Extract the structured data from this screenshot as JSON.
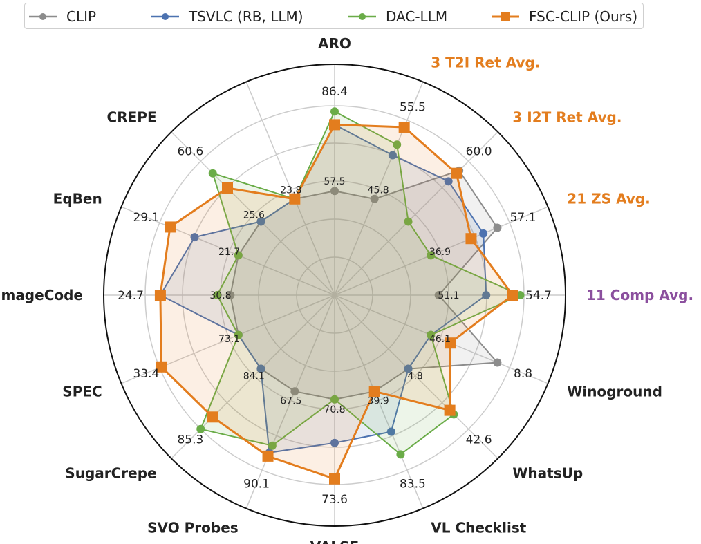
{
  "legend": {
    "items": [
      {
        "name": "CLIP",
        "color": "#8c8c8c",
        "marker": "circle"
      },
      {
        "name": "TSVLC (RB, LLM)",
        "color": "#4c72b0",
        "marker": "circle"
      },
      {
        "name": "DAC-LLM",
        "color": "#6aac48",
        "marker": "circle"
      },
      {
        "name": "FSC-CLIP (Ours)",
        "color": "#e37d1e",
        "marker": "square"
      }
    ]
  },
  "chart_data": {
    "type": "radar",
    "axes": [
      {
        "label": "ARO",
        "color": "#222222",
        "inner_label": "57.5",
        "outer_label": "86.4"
      },
      {
        "label": "3 T2I Ret Avg.",
        "color": "#e37d1e",
        "inner_label": "45.8",
        "outer_label": "55.5"
      },
      {
        "label": "3 I2T Ret Avg.",
        "color": "#e37d1e",
        "inner_label": "",
        "outer_label": "60.0"
      },
      {
        "label": "21 ZS Avg.",
        "color": "#e37d1e",
        "inner_label": "36.9",
        "outer_label": "57.1"
      },
      {
        "label": "11 Comp Avg.",
        "color": "#8b4f9e",
        "inner_label": "51.1",
        "outer_label": "54.7"
      },
      {
        "label": "Winoground",
        "color": "#222222",
        "inner_label": "46.1",
        "outer_label": "8.8"
      },
      {
        "label": "WhatsUp",
        "color": "#222222",
        "inner_label": "4.8",
        "outer_label": "42.6"
      },
      {
        "label": "VL Checklist",
        "color": "#222222",
        "inner_label": "39.9",
        "outer_label": "83.5"
      },
      {
        "label": "VALSE",
        "color": "#222222",
        "inner_label": "70.8",
        "outer_label": "73.6"
      },
      {
        "label": "SVO Probes",
        "color": "#222222",
        "inner_label": "67.5",
        "outer_label": "90.1"
      },
      {
        "label": "SugarCrepe",
        "color": "#222222",
        "inner_label": "84.1",
        "outer_label": "85.3"
      },
      {
        "label": "SPEC",
        "color": "#222222",
        "inner_label": "73.1",
        "outer_label": "33.4"
      },
      {
        "label": "ImageCode",
        "color": "#222222",
        "inner_label": "30.8",
        "outer_label": "24.7"
      },
      {
        "label": "EqBen",
        "color": "#222222",
        "inner_label": "21.7",
        "outer_label": "29.1"
      },
      {
        "label": "CREPE",
        "color": "#222222",
        "inner_label": "25.6",
        "outer_label": "60.6"
      },
      {
        "label": "",
        "color": "#222222",
        "inner_label": "23.8",
        "outer_label": ""
      }
    ],
    "rlim": [
      0,
      1
    ],
    "grid": true,
    "legend_position": "top",
    "series": [
      {
        "name": "CLIP",
        "color": "#8c8c8c",
        "marker": "circle",
        "values": [
          0.55,
          0.55,
          0.93,
          0.93,
          0.55,
          0.93,
          0.55,
          0.55,
          0.55,
          0.55,
          0.55,
          0.55,
          0.55,
          0.55,
          0.55,
          0.55
        ]
      },
      {
        "name": "TSVLC (RB, LLM)",
        "color": "#4c72b0",
        "marker": "circle",
        "values": [
          0.9,
          0.8,
          0.85,
          0.85,
          0.8,
          0.55,
          0.55,
          0.78,
          0.78,
          0.9,
          0.55,
          0.55,
          0.92,
          0.8,
          0.55,
          0.55
        ]
      },
      {
        "name": "DAC-LLM",
        "color": "#6aac48",
        "marker": "circle",
        "values": [
          0.97,
          0.86,
          0.55,
          0.55,
          0.98,
          0.55,
          0.89,
          0.91,
          0.55,
          0.86,
          1.0,
          0.55,
          0.62,
          0.55,
          0.91,
          0.55
        ]
      },
      {
        "name": "FSC-CLIP (Ours)",
        "color": "#e37d1e",
        "marker": "square",
        "values": [
          0.9,
          0.96,
          0.91,
          0.78,
          0.94,
          0.66,
          0.86,
          0.55,
          0.97,
          0.92,
          0.91,
          0.99,
          0.92,
          0.94,
          0.8,
          0.55
        ]
      }
    ]
  }
}
